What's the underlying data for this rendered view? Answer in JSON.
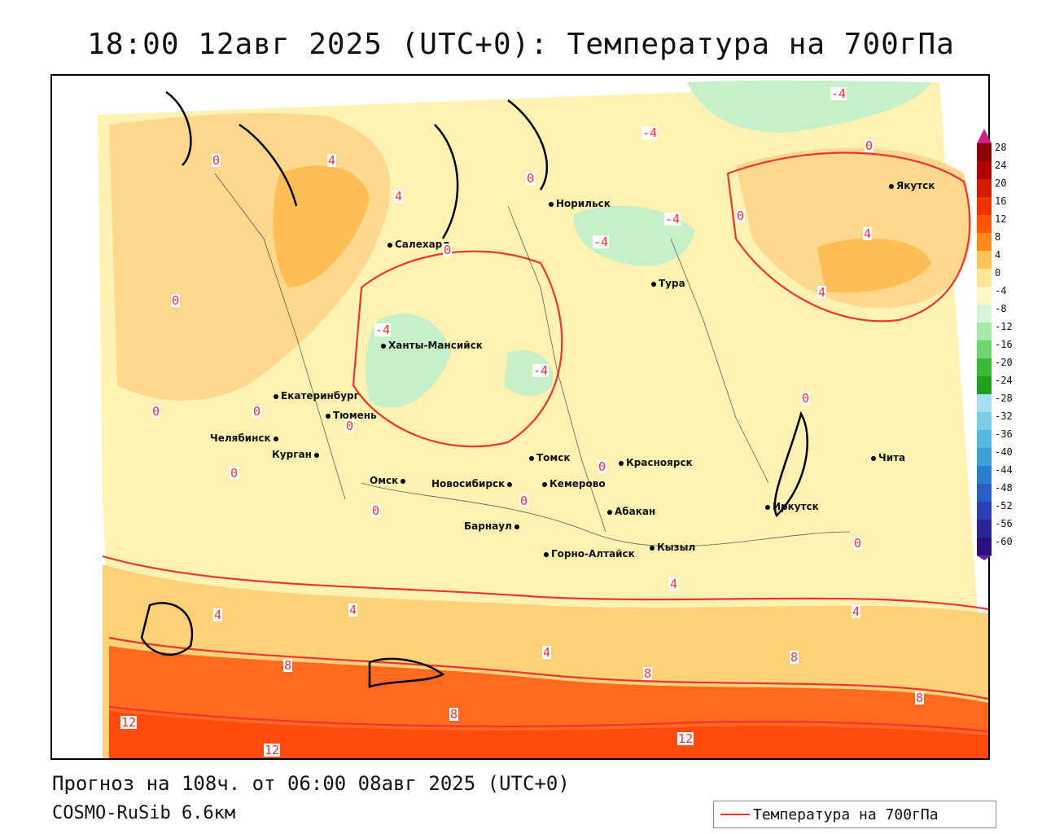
{
  "title": "18:00 12авг 2025 (UTC+0): Температура на 700гПа",
  "forecast_line": "Прогноз на 108ч. от 06:00 08авг 2025 (UTC+0)",
  "model_line": "COSMO-RuSib 6.6км",
  "legend": {
    "label": "Температура на 700гПа",
    "color": "#e33333"
  },
  "cities": [
    {
      "name": "Салехард"
    },
    {
      "name": "Норильск"
    },
    {
      "name": "Якутск"
    },
    {
      "name": "Тура"
    },
    {
      "name": "Ханты-Мансийск"
    },
    {
      "name": "Екатеринбург"
    },
    {
      "name": "Тюмень"
    },
    {
      "name": "Челябинск"
    },
    {
      "name": "Курган"
    },
    {
      "name": "Омск"
    },
    {
      "name": "Новосибирск"
    },
    {
      "name": "Томск"
    },
    {
      "name": "Кемерово"
    },
    {
      "name": "Красноярск"
    },
    {
      "name": "Барнаул"
    },
    {
      "name": "Абакан"
    },
    {
      "name": "Горно-Алтайск"
    },
    {
      "name": "Кызыл"
    },
    {
      "name": "Иркутск"
    },
    {
      "name": "Чита"
    }
  ],
  "isoline_labels": [
    "-4",
    "-4",
    "0",
    "0",
    "4",
    "4",
    "0",
    "-4",
    "-4",
    "0",
    "4",
    "4",
    "0",
    "-4",
    "-4",
    "0",
    "0",
    "0",
    "0",
    "0",
    "0",
    "0",
    "0",
    "0",
    "0",
    "4",
    "4",
    "4",
    "4",
    "4",
    "8",
    "8",
    "8",
    "8",
    "8",
    "12",
    "12",
    "12"
  ],
  "colorbar": {
    "ticks": [
      "28",
      "24",
      "20",
      "16",
      "12",
      "8",
      "4",
      "0",
      "-4",
      "-8",
      "-12",
      "-16",
      "-20",
      "-24",
      "-28",
      "-32",
      "-36",
      "-40",
      "-44",
      "-48",
      "-52",
      "-56",
      "-60"
    ],
    "colors": [
      "#8b0000",
      "#b00000",
      "#d41a00",
      "#ee3300",
      "#ff5500",
      "#ff8a1a",
      "#ffc25c",
      "#ffe49a",
      "#fff7c8",
      "#d6f5d6",
      "#a8e8a8",
      "#6fd46f",
      "#39bb39",
      "#1f9e1f",
      "#a6dff0",
      "#7ccbe8",
      "#59b7e0",
      "#3d9ed8",
      "#2e7fd0",
      "#2b5fc4",
      "#2a40b0",
      "#2a2598",
      "#2a0f80"
    ]
  }
}
